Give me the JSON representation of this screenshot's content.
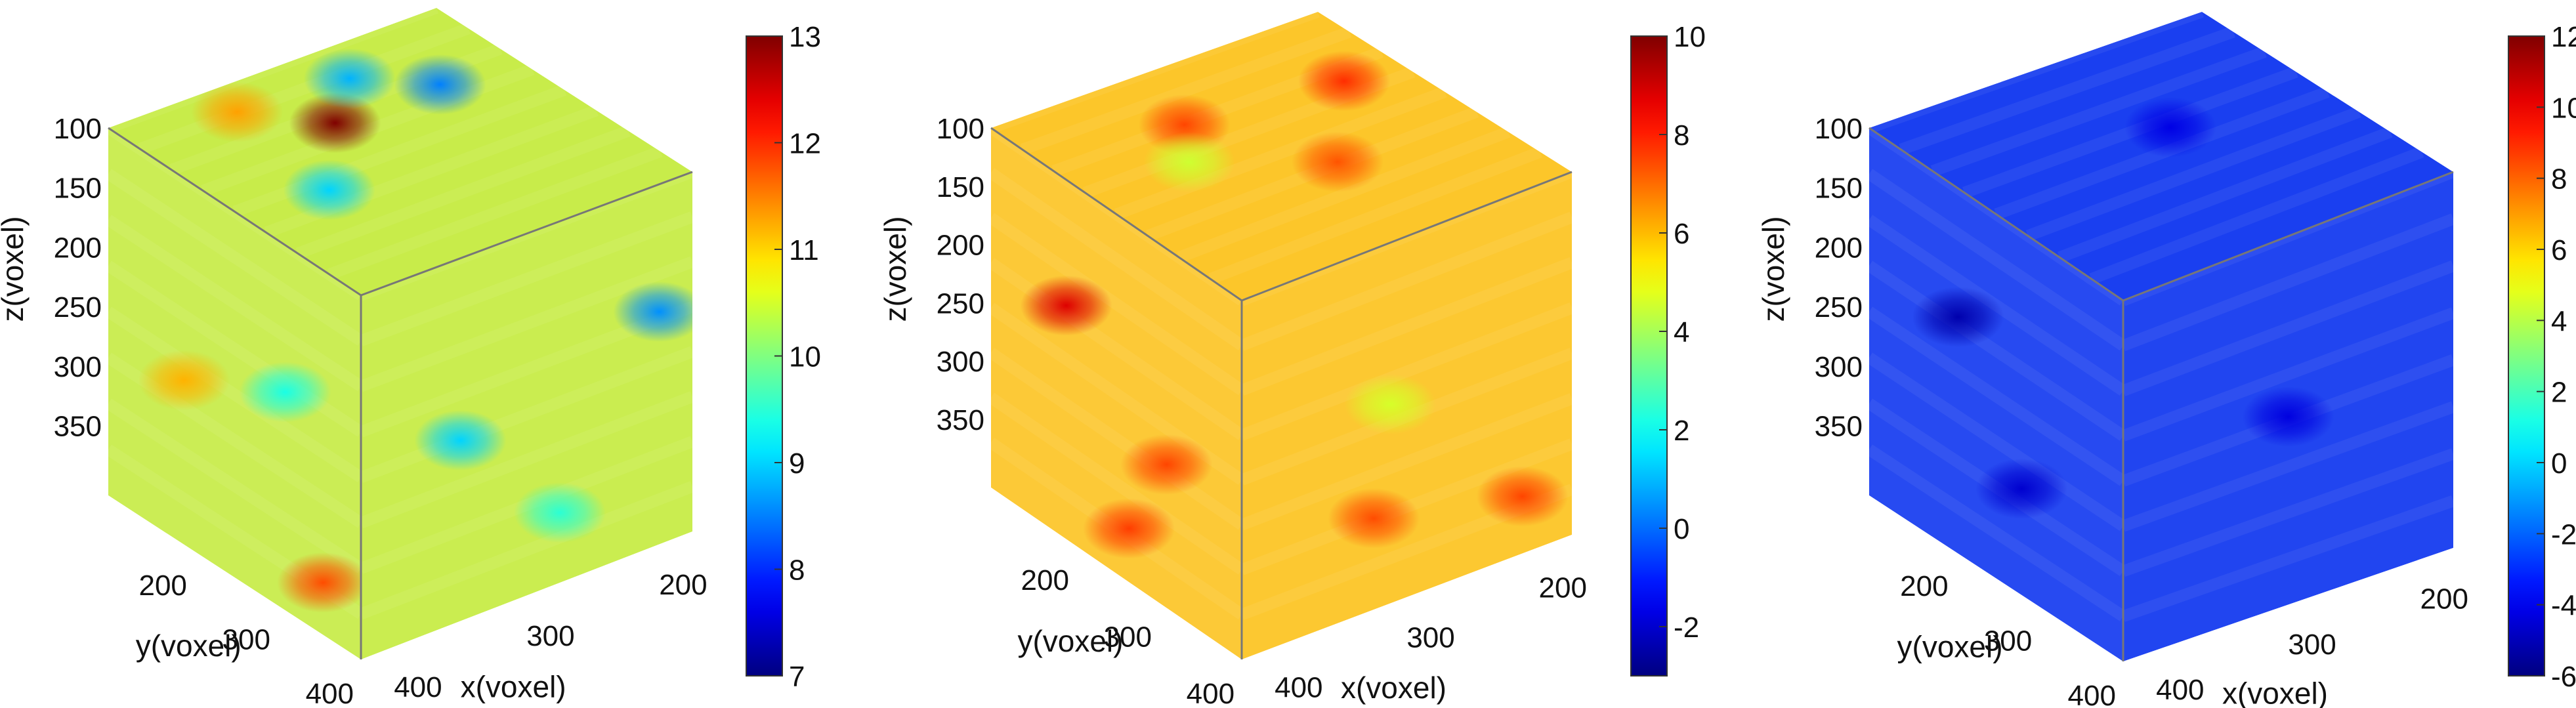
{
  "chart_data": [
    {
      "type": "heatmap",
      "subtype": "3d-voxel-volume",
      "colormap": "jet",
      "dominant_color": "#c8ec4a",
      "colorbar": {
        "min": 7,
        "max": 13,
        "ticks": [
          "13",
          "12",
          "11",
          "10",
          "9",
          "8",
          "7"
        ]
      },
      "z_ticks": [
        "100",
        "150",
        "200",
        "250",
        "300",
        "350"
      ],
      "y_ticks": [
        "200",
        "300",
        "400"
      ],
      "x_ticks": [
        "400",
        "300",
        "200"
      ],
      "xlabel": "x(voxel)",
      "ylabel": "y(voxel)",
      "zlabel": "z(voxel)",
      "hotspots": [
        {
          "face": "top",
          "u": 0.46,
          "v": 0.3,
          "value": 13
        },
        {
          "face": "top",
          "u": 0.78,
          "v": 0.3,
          "value": 8.5
        },
        {
          "face": "top",
          "u": 0.62,
          "v": 0.15,
          "value": 8.8
        },
        {
          "face": "top",
          "u": 0.25,
          "v": 0.55,
          "value": 9.0
        },
        {
          "face": "top",
          "u": 0.3,
          "v": 0.12,
          "value": 11.3
        },
        {
          "face": "left",
          "u": 0.3,
          "v": 0.55,
          "value": 11.2
        },
        {
          "face": "left",
          "u": 0.7,
          "v": 0.4,
          "value": 9.4
        },
        {
          "face": "left",
          "u": 0.85,
          "v": 0.85,
          "value": 11.8
        },
        {
          "face": "right",
          "u": 0.3,
          "v": 0.5,
          "value": 9.0
        },
        {
          "face": "right",
          "u": 0.9,
          "v": 0.35,
          "value": 8.6
        },
        {
          "face": "right",
          "u": 0.6,
          "v": 0.8,
          "value": 9.5
        }
      ]
    },
    {
      "type": "heatmap",
      "subtype": "3d-voxel-volume",
      "colormap": "jet",
      "dominant_color": "#fcc62a",
      "colorbar": {
        "min": -3,
        "max": 10,
        "ticks": [
          "10",
          "8",
          "6",
          "4",
          "2",
          "0",
          "-2"
        ]
      },
      "z_ticks": [
        "100",
        "150",
        "200",
        "250",
        "300",
        "350"
      ],
      "y_ticks": [
        "200",
        "300",
        "400"
      ],
      "x_ticks": [
        "400",
        "300",
        "200"
      ],
      "xlabel": "x(voxel)",
      "ylabel": "y(voxel)",
      "zlabel": "z(voxel)",
      "hotspots": [
        {
          "face": "top",
          "u": 0.4,
          "v": 0.25,
          "value": 7.5
        },
        {
          "face": "top",
          "u": 0.85,
          "v": 0.3,
          "value": 7.8
        },
        {
          "face": "top",
          "u": 0.6,
          "v": 0.6,
          "value": 7.3
        },
        {
          "face": "top",
          "u": 0.3,
          "v": 0.4,
          "value": 4.5
        },
        {
          "face": "left",
          "u": 0.3,
          "v": 0.35,
          "value": 8.8
        },
        {
          "face": "left",
          "u": 0.7,
          "v": 0.6,
          "value": 7.5
        },
        {
          "face": "left",
          "u": 0.55,
          "v": 0.85,
          "value": 7.6
        },
        {
          "face": "right",
          "u": 0.45,
          "v": 0.45,
          "value": 4.6
        },
        {
          "face": "right",
          "u": 0.4,
          "v": 0.75,
          "value": 7.4
        },
        {
          "face": "right",
          "u": 0.85,
          "v": 0.85,
          "value": 7.5
        }
      ]
    },
    {
      "type": "heatmap",
      "subtype": "3d-voxel-volume",
      "colormap": "jet",
      "dominant_color": "#1a3ff0",
      "colorbar": {
        "min": -6,
        "max": 12,
        "ticks": [
          "12",
          "10",
          "8",
          "6",
          "4",
          "2",
          "0",
          "-2",
          "-4",
          "-6"
        ]
      },
      "z_ticks": [
        "100",
        "150",
        "200",
        "250",
        "300",
        "350"
      ],
      "y_ticks": [
        "200",
        "300",
        "400"
      ],
      "x_ticks": [
        "400",
        "300",
        "200"
      ],
      "xlabel": "x(voxel)",
      "ylabel": "y(voxel)",
      "zlabel": "z(voxel)",
      "hotspots": [
        {
          "face": "left",
          "u": 0.35,
          "v": 0.35,
          "value": -5.2
        },
        {
          "face": "left",
          "u": 0.6,
          "v": 0.7,
          "value": -4.6
        },
        {
          "face": "right",
          "u": 0.5,
          "v": 0.5,
          "value": -4.3
        },
        {
          "face": "top",
          "u": 0.6,
          "v": 0.4,
          "value": -4.2
        }
      ]
    }
  ]
}
